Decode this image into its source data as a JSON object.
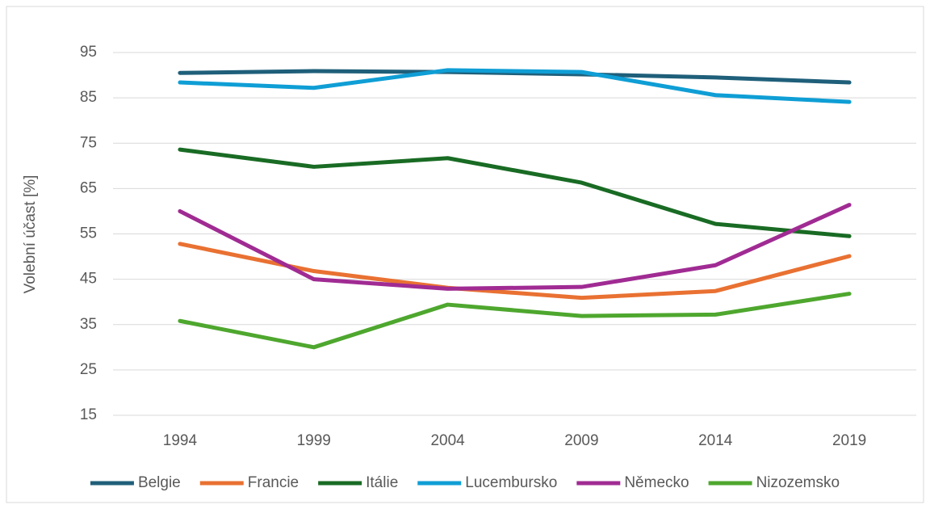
{
  "chart_data": {
    "type": "line",
    "y_label": "Volební účast [%]",
    "categories": [
      "1994",
      "1999",
      "2004",
      "2009",
      "2014",
      "2019"
    ],
    "series": [
      {
        "name": "Belgie",
        "color": "#1f5f7a",
        "values": [
          90.5,
          90.9,
          90.7,
          90.2,
          89.5,
          88.4
        ]
      },
      {
        "name": "Francie",
        "color": "#e97132",
        "values": [
          52.8,
          46.8,
          43.1,
          40.9,
          42.4,
          50.1
        ]
      },
      {
        "name": "Itálie",
        "color": "#196b24",
        "values": [
          73.6,
          69.8,
          71.7,
          66.3,
          57.2,
          54.5
        ]
      },
      {
        "name": "Lucembursko",
        "color": "#0f9ed5",
        "values": [
          88.4,
          87.2,
          91.1,
          90.7,
          85.6,
          84.1
        ]
      },
      {
        "name": "Německo",
        "color": "#a02b93",
        "values": [
          60.0,
          45.0,
          42.9,
          43.3,
          48.1,
          61.4
        ]
      },
      {
        "name": "Nizozemsko",
        "color": "#4ea72e",
        "values": [
          35.8,
          30.0,
          39.4,
          36.9,
          37.2,
          41.8
        ]
      }
    ],
    "ylim": [
      15,
      95
    ],
    "yticks": [
      15,
      25,
      35,
      45,
      55,
      65,
      75,
      85,
      95
    ],
    "grid": true,
    "legend": "bottom"
  }
}
